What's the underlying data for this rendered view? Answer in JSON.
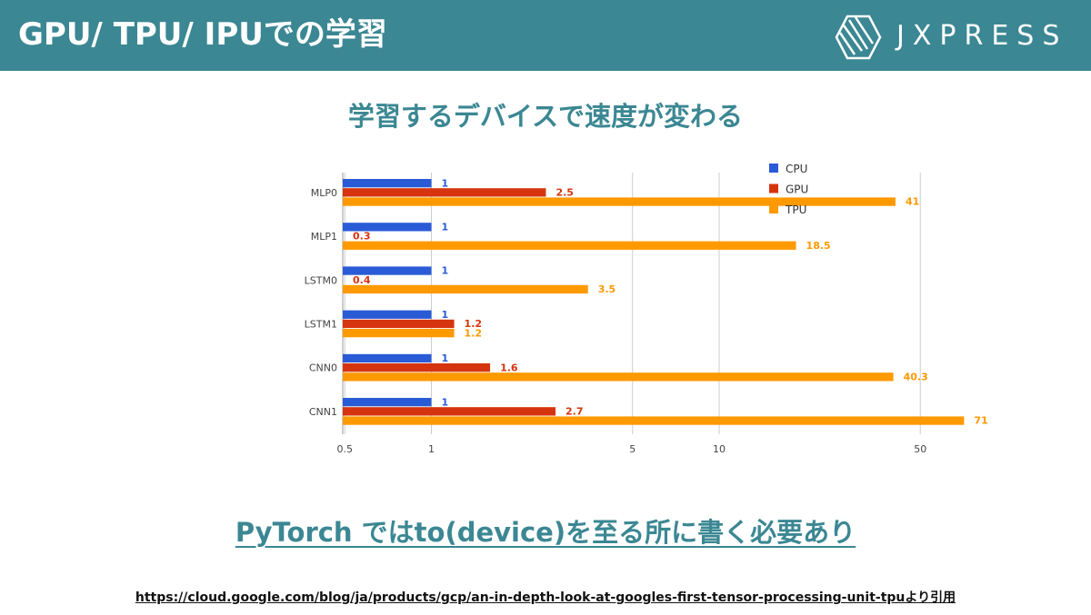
{
  "header": {
    "title": "GPU/ TPU/ IPUでの学習",
    "logo_text": "JXPRESS"
  },
  "chart_title": "学習するデバイスで速度が変わる",
  "tagline": "PyTorch ではto(device)を至る所に書く必要あり",
  "source": "https://cloud.google.com/blog/ja/products/gcp/an-in-depth-look-at-googles-first-tensor-processing-unit-tpuより引用",
  "colors": {
    "header_bg": "#3b8793",
    "CPU": "#2a5bd7",
    "GPU": "#d6340f",
    "TPU": "#ff9900"
  },
  "chart_data": {
    "type": "bar",
    "orientation": "horizontal",
    "x_scale": "log",
    "xlim": [
      0.29,
      80
    ],
    "xticks": [
      0.5,
      1,
      5,
      10,
      50
    ],
    "xtick_labels": [
      "0.5",
      "1",
      "5",
      "10",
      "50"
    ],
    "grid": true,
    "legend_position": "top-right",
    "categories": [
      "MLP0",
      "MLP1",
      "LSTM0",
      "LSTM1",
      "CNN0",
      "CNN1"
    ],
    "series": [
      {
        "name": "CPU",
        "color": "#2a5bd7",
        "values": [
          1,
          1,
          1,
          1,
          1,
          1
        ]
      },
      {
        "name": "GPU",
        "color": "#d6340f",
        "values": [
          2.5,
          0.3,
          0.4,
          1.2,
          1.6,
          2.7
        ]
      },
      {
        "name": "TPU",
        "color": "#ff9900",
        "values": [
          41,
          18.5,
          3.5,
          1.2,
          40.3,
          71
        ]
      }
    ]
  }
}
